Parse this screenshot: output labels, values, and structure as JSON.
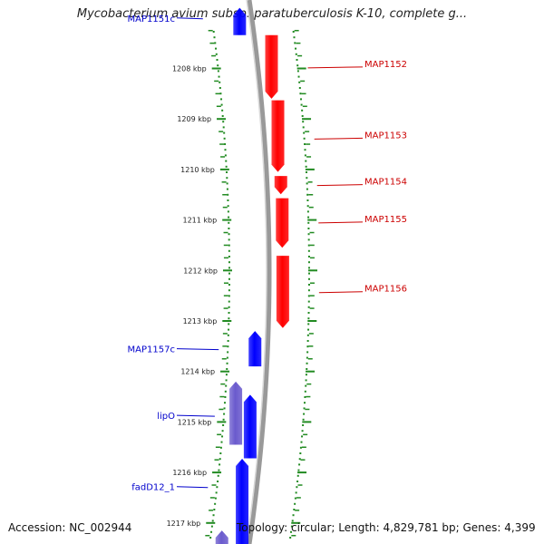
{
  "title": "Mycobacterium avium subsp. paratuberculosis K-10, complete g...",
  "footer": {
    "accession": "Accession: NC_002944",
    "stats": "Topology: circular; Length: 4,829,781 bp; Genes: 4,399"
  },
  "colors": {
    "forward_gene": "#ff0000",
    "reverse_gene": "#0000ff",
    "reverse_gene_secondary": "#6a5acd",
    "ticks": "#228b22",
    "backbone": "#999999"
  },
  "ruler": {
    "ticks": [
      {
        "kbp": 1208,
        "label": "1208 kbp"
      },
      {
        "kbp": 1209,
        "label": "1209 kbp"
      },
      {
        "kbp": 1210,
        "label": "1210 kbp"
      },
      {
        "kbp": 1211,
        "label": "1211 kbp"
      },
      {
        "kbp": 1212,
        "label": "1212 kbp"
      },
      {
        "kbp": 1213,
        "label": "1213 kbp"
      },
      {
        "kbp": 1214,
        "label": "1214 kbp"
      },
      {
        "kbp": 1215,
        "label": "1215 kbp"
      },
      {
        "kbp": 1216,
        "label": "1216 kbp"
      },
      {
        "kbp": 1217,
        "label": "1217 kbp"
      }
    ]
  },
  "genes": [
    {
      "name": "MAP1151c",
      "strand": "reverse",
      "start_kbp": 1206.8,
      "end_kbp": 1207.34,
      "color": "#0000ff",
      "track": "outer"
    },
    {
      "name": "MAP1152",
      "strand": "forward",
      "start_kbp": 1207.34,
      "end_kbp": 1208.6,
      "color": "#ff0000",
      "track": "outer"
    },
    {
      "name": "MAP1153",
      "strand": "forward",
      "start_kbp": 1208.63,
      "end_kbp": 1210.05,
      "color": "#ff0000",
      "track": "outer"
    },
    {
      "name": "MAP1154",
      "strand": "forward",
      "start_kbp": 1210.13,
      "end_kbp": 1210.49,
      "color": "#ff0000",
      "track": "outer"
    },
    {
      "name": "MAP1155",
      "strand": "forward",
      "start_kbp": 1210.57,
      "end_kbp": 1211.55,
      "color": "#ff0000",
      "track": "outer"
    },
    {
      "name": "MAP1156",
      "strand": "forward",
      "start_kbp": 1211.71,
      "end_kbp": 1213.14,
      "color": "#ff0000",
      "track": "outer"
    },
    {
      "name": "MAP1157c",
      "strand": "reverse",
      "start_kbp": 1213.2,
      "end_kbp": 1213.9,
      "color": "#0000ff",
      "track": "outer"
    },
    {
      "name": "lipO",
      "strand": "reverse",
      "start_kbp": 1214.46,
      "end_kbp": 1215.72,
      "color": "#0000ff",
      "track": "outer"
    },
    {
      "name": "",
      "strand": "reverse",
      "start_kbp": 1214.2,
      "end_kbp": 1215.45,
      "color": "#6a5acd",
      "track": "inner"
    },
    {
      "name": "fadD12_1",
      "strand": "reverse",
      "start_kbp": 1215.73,
      "end_kbp": 1217.5,
      "color": "#0000ff",
      "track": "outer"
    },
    {
      "name": "",
      "strand": "reverse",
      "start_kbp": 1217.15,
      "end_kbp": 1217.5,
      "color": "#6a5acd",
      "track": "inner"
    }
  ],
  "labels": [
    {
      "gene": "MAP1151c",
      "text": "MAP1151c",
      "side": "left",
      "at_kbp": 1207.0,
      "color": "#0000cc"
    },
    {
      "gene": "MAP1152",
      "text": "MAP1152",
      "side": "right",
      "at_kbp": 1207.97,
      "color": "#cc0000"
    },
    {
      "gene": "MAP1153",
      "text": "MAP1153",
      "side": "right",
      "at_kbp": 1209.38,
      "color": "#cc0000"
    },
    {
      "gene": "MAP1154",
      "text": "MAP1154",
      "side": "right",
      "at_kbp": 1210.3,
      "color": "#cc0000"
    },
    {
      "gene": "MAP1155",
      "text": "MAP1155",
      "side": "right",
      "at_kbp": 1211.04,
      "color": "#cc0000"
    },
    {
      "gene": "MAP1156",
      "text": "MAP1156",
      "side": "right",
      "at_kbp": 1212.42,
      "color": "#cc0000"
    },
    {
      "gene": "MAP1157c",
      "text": "MAP1157c",
      "side": "left",
      "at_kbp": 1213.55,
      "color": "#0000cc"
    },
    {
      "gene": "lipO",
      "text": "lipO",
      "side": "left",
      "at_kbp": 1214.87,
      "color": "#0000cc"
    },
    {
      "gene": "fadD12_1",
      "text": "fadD12_1",
      "side": "left",
      "at_kbp": 1216.28,
      "color": "#0000cc"
    }
  ]
}
